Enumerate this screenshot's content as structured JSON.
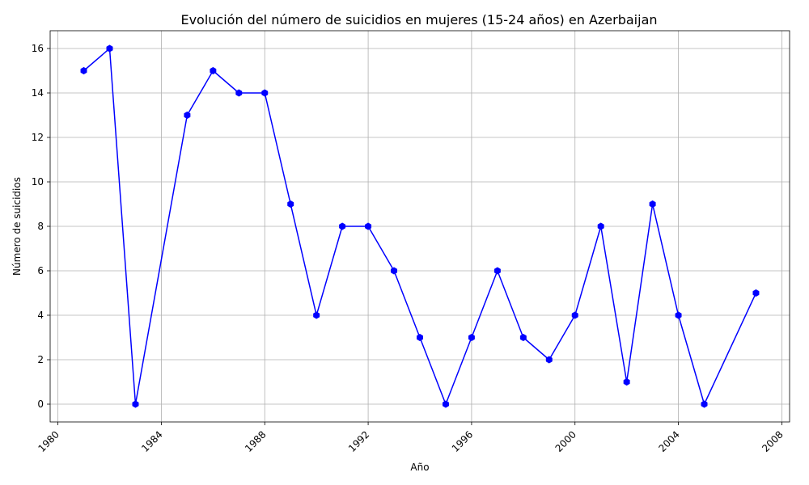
{
  "chart_data": {
    "type": "line",
    "title": "Evolución del número de suicidios en mujeres (15-24 años) en Azerbaijan",
    "xlabel": "Año",
    "ylabel": "Número de suicidios",
    "xlim": [
      1979.7,
      2008.3
    ],
    "ylim": [
      -0.8,
      16.8
    ],
    "xticks": [
      1980,
      1984,
      1988,
      1992,
      1996,
      2000,
      2004,
      2008
    ],
    "yticks": [
      0,
      2,
      4,
      6,
      8,
      10,
      12,
      14,
      16
    ],
    "grid": true,
    "series": [
      {
        "color": "#0000ff",
        "marker": "hexagon",
        "points": [
          {
            "x": 1981,
            "y": 15
          },
          {
            "x": 1982,
            "y": 16
          },
          {
            "x": 1983,
            "y": 0
          },
          {
            "x": 1985,
            "y": 13
          },
          {
            "x": 1986,
            "y": 15
          },
          {
            "x": 1987,
            "y": 14
          },
          {
            "x": 1988,
            "y": 14
          },
          {
            "x": 1989,
            "y": 9
          },
          {
            "x": 1990,
            "y": 4
          },
          {
            "x": 1991,
            "y": 8
          },
          {
            "x": 1992,
            "y": 8
          },
          {
            "x": 1993,
            "y": 6
          },
          {
            "x": 1994,
            "y": 3
          },
          {
            "x": 1995,
            "y": 0
          },
          {
            "x": 1996,
            "y": 3
          },
          {
            "x": 1997,
            "y": 6
          },
          {
            "x": 1998,
            "y": 3
          },
          {
            "x": 1999,
            "y": 2
          },
          {
            "x": 2000,
            "y": 4
          },
          {
            "x": 2001,
            "y": 8
          },
          {
            "x": 2002,
            "y": 1
          },
          {
            "x": 2003,
            "y": 9
          },
          {
            "x": 2004,
            "y": 4
          },
          {
            "x": 2005,
            "y": 0
          },
          {
            "x": 2007,
            "y": 5
          }
        ]
      }
    ]
  }
}
